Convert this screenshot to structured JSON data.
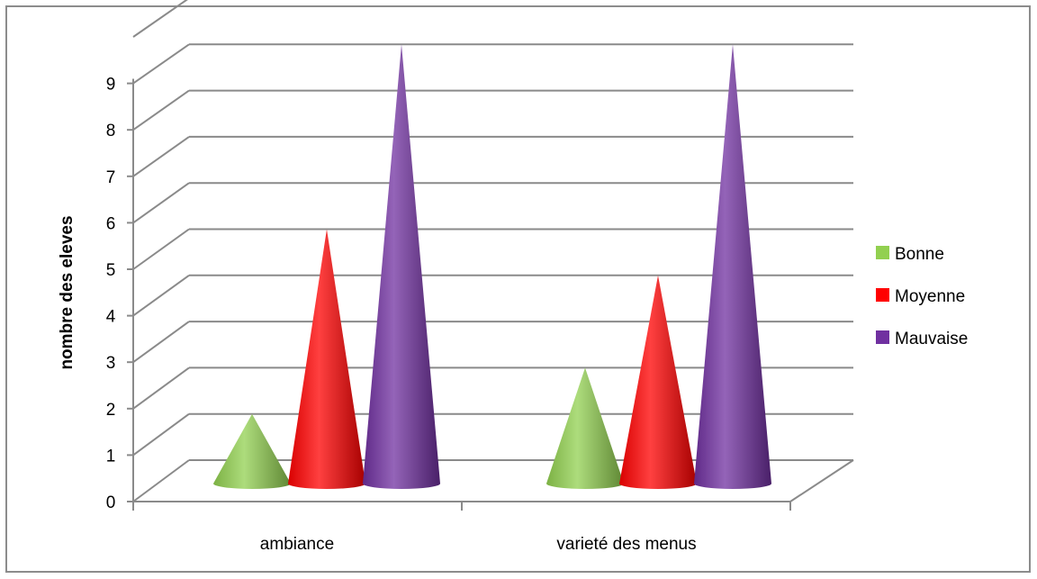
{
  "chart_data": {
    "type": "bar",
    "variant": "3d-cone",
    "categories": [
      "ambiance",
      "varieté des menus"
    ],
    "series": [
      {
        "name": "Bonne",
        "values": [
          1,
          2
        ],
        "color": "#92d050"
      },
      {
        "name": "Moyenne",
        "values": [
          5,
          4
        ],
        "color": "#ff0000"
      },
      {
        "name": "Mauvaise",
        "values": [
          9,
          9
        ],
        "color": "#7030a0"
      }
    ],
    "title": "",
    "xlabel": "",
    "ylabel": "nombre des eleves",
    "ylim": [
      0,
      10
    ],
    "yticks": [
      "0",
      "1",
      "2",
      "3",
      "4",
      "5",
      "6",
      "7",
      "8",
      "9"
    ],
    "grid": true,
    "legend_position": "right"
  }
}
